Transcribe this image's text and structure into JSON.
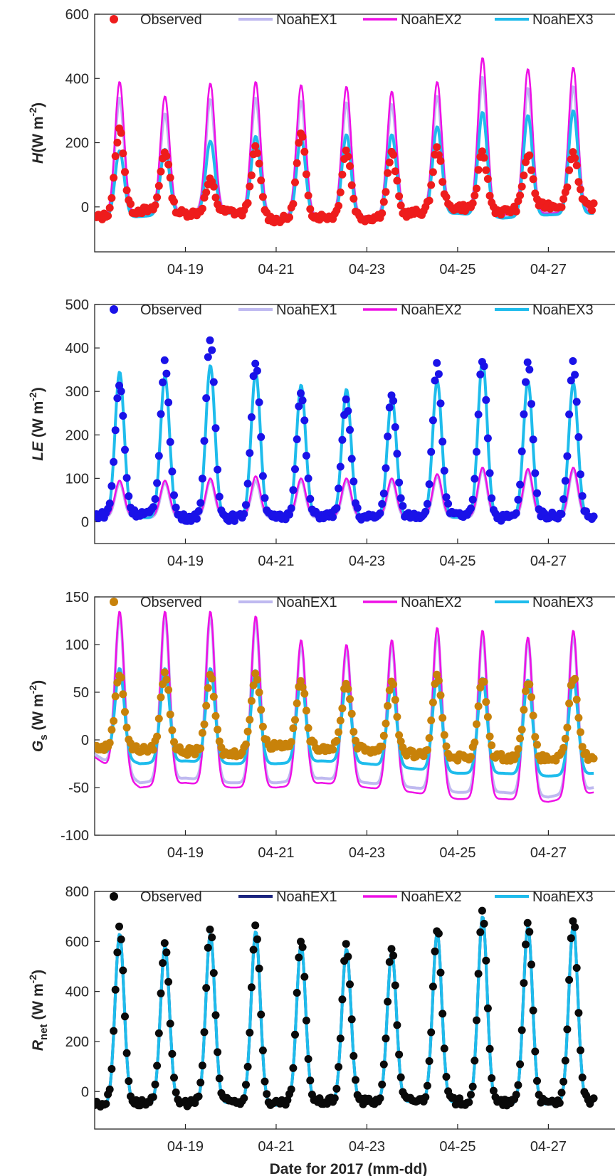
{
  "chart_data": [
    {
      "type": "line",
      "panel": "H",
      "ylabel": {
        "symbol": "H",
        "sub": "",
        "unit": "(W m",
        "exp": "-2",
        "close": ")"
      },
      "ylim": [
        -140,
        600
      ],
      "yticks": [
        0,
        200,
        400,
        600
      ],
      "xlim": [
        0,
        11.5
      ],
      "xticks": [
        2,
        4,
        6,
        8,
        10
      ],
      "xtick_labels": [
        "04-19",
        "04-21",
        "04-23",
        "04-25",
        "04-27"
      ],
      "legend": [
        "Observed",
        "NoahEX1",
        "NoahEX2",
        "NoahEX3"
      ],
      "legend_position": "top",
      "colors": {
        "observed": "#ee1c1c",
        "ex1": "#bfb9f0",
        "ex2": "#ee10e6",
        "ex3": "#1ebcec"
      },
      "series": [
        {
          "name": "Observed",
          "kind": "scatter",
          "daily_peaks": [
            240,
            175,
            80,
            180,
            225,
            175,
            165,
            180,
            165,
            160,
            170
          ],
          "night": [
            -35,
            -10,
            -20,
            -15,
            -40,
            -30,
            -35,
            -20,
            0,
            -15,
            5,
            0
          ]
        },
        {
          "name": "NoahEX1",
          "kind": "line",
          "daily_peaks": [
            340,
            290,
            335,
            340,
            330,
            325,
            320,
            345,
            405,
            370,
            375
          ],
          "night": [
            -30,
            -20,
            -15,
            -10,
            -30,
            -25,
            -30,
            -15,
            -10,
            -20,
            -15,
            -10
          ]
        },
        {
          "name": "NoahEX2",
          "kind": "line",
          "daily_peaks": [
            390,
            345,
            385,
            390,
            380,
            375,
            360,
            390,
            465,
            430,
            435
          ],
          "night": [
            -35,
            -25,
            -20,
            -15,
            -35,
            -30,
            -35,
            -20,
            -15,
            -25,
            -20,
            -15
          ]
        },
        {
          "name": "NoahEX3",
          "kind": "line",
          "daily_peaks": [
            175,
            180,
            205,
            220,
            215,
            225,
            225,
            250,
            295,
            285,
            300
          ],
          "night": [
            -40,
            -30,
            -20,
            -20,
            -40,
            -35,
            -40,
            -25,
            -20,
            -35,
            -25,
            -20
          ]
        }
      ]
    },
    {
      "type": "line",
      "panel": "LE",
      "ylabel": {
        "symbol": "LE",
        "sub": "",
        "unit": " (W m",
        "exp": "-2",
        "close": ")"
      },
      "ylim": [
        -50,
        500
      ],
      "yticks": [
        0,
        100,
        200,
        300,
        400,
        500
      ],
      "xlim": [
        0,
        11.5
      ],
      "xticks": [
        2,
        4,
        6,
        8,
        10
      ],
      "xtick_labels": [
        "04-19",
        "04-21",
        "04-23",
        "04-25",
        "04-27"
      ],
      "legend": [
        "Observed",
        "NoahEX1",
        "NoahEX2",
        "NoahEX3"
      ],
      "legend_position": "top",
      "colors": {
        "observed": "#1a12e8",
        "ex1": "#bfb9f0",
        "ex2": "#ee10e6",
        "ex3": "#1ebcec"
      },
      "series": [
        {
          "name": "Observed",
          "kind": "scatter",
          "daily_peaks": [
            315,
            365,
            420,
            370,
            295,
            275,
            290,
            360,
            375,
            365,
            365
          ],
          "night": [
            15,
            20,
            10,
            10,
            10,
            15,
            10,
            15,
            15,
            10,
            15,
            10
          ]
        },
        {
          "name": "NoahEX1",
          "kind": "line",
          "daily_peaks": [
            90,
            90,
            95,
            95,
            95,
            95,
            95,
            105,
            120,
            118,
            120
          ],
          "night": [
            10,
            10,
            10,
            10,
            10,
            10,
            10,
            10,
            10,
            10,
            10,
            10
          ]
        },
        {
          "name": "NoahEX2",
          "kind": "line",
          "daily_peaks": [
            95,
            95,
            100,
            105,
            100,
            100,
            100,
            110,
            125,
            122,
            125
          ],
          "night": [
            12,
            12,
            12,
            12,
            12,
            12,
            12,
            12,
            12,
            12,
            12,
            12
          ]
        },
        {
          "name": "NoahEX3",
          "kind": "line",
          "daily_peaks": [
            345,
            335,
            360,
            345,
            315,
            305,
            290,
            325,
            375,
            325,
            320
          ],
          "night": [
            10,
            10,
            5,
            10,
            10,
            15,
            10,
            10,
            10,
            10,
            10,
            10
          ]
        }
      ]
    },
    {
      "type": "line",
      "panel": "Gs",
      "ylabel": {
        "symbol": "G",
        "sub": "s",
        "unit": " (W m",
        "exp": "-2",
        "close": ")"
      },
      "ylim": [
        -100,
        150
      ],
      "yticks": [
        -100,
        -50,
        0,
        50,
        100,
        150
      ],
      "xlim": [
        0,
        11.5
      ],
      "xticks": [
        2,
        4,
        6,
        8,
        10
      ],
      "xtick_labels": [
        "04-19",
        "04-21",
        "04-23",
        "04-25",
        "04-27"
      ],
      "legend": [
        "Observed",
        "NoahEX1",
        "NoahEX2",
        "NoahEX3"
      ],
      "legend_position": "top",
      "colors": {
        "observed": "#c8820a",
        "ex1": "#bfb9f0",
        "ex2": "#ee10e6",
        "ex3": "#1ebcec"
      },
      "series": [
        {
          "name": "Observed",
          "kind": "scatter",
          "daily_peaks": [
            70,
            70,
            65,
            70,
            62,
            60,
            62,
            65,
            62,
            62,
            65
          ],
          "night": [
            -8,
            -10,
            -12,
            -15,
            -5,
            -8,
            -10,
            -15,
            -18,
            -18,
            -20,
            -18
          ]
        },
        {
          "name": "NoahEX1",
          "kind": "line",
          "daily_peaks": [
            130,
            130,
            130,
            125,
            100,
            95,
            100,
            112,
            110,
            105,
            110
          ],
          "night": [
            -15,
            -45,
            -40,
            -45,
            -45,
            -40,
            -45,
            -50,
            -55,
            -55,
            -60,
            -50
          ]
        },
        {
          "name": "NoahEX2",
          "kind": "line",
          "daily_peaks": [
            135,
            135,
            135,
            130,
            105,
            100,
            105,
            118,
            115,
            108,
            115
          ],
          "night": [
            -18,
            -50,
            -45,
            -50,
            -50,
            -45,
            -50,
            -55,
            -62,
            -62,
            -65,
            -55
          ]
        },
        {
          "name": "NoahEX3",
          "kind": "line",
          "daily_peaks": [
            75,
            75,
            75,
            73,
            63,
            60,
            60,
            67,
            65,
            63,
            65
          ],
          "night": [
            -10,
            -25,
            -22,
            -25,
            -25,
            -22,
            -25,
            -30,
            -35,
            -35,
            -38,
            -35
          ]
        }
      ]
    },
    {
      "type": "line",
      "panel": "Rnet",
      "ylabel": {
        "symbol": "R",
        "sub": "net",
        "unit": " (W m",
        "exp": "-2",
        "close": ")"
      },
      "ylim": [
        -150,
        800
      ],
      "yticks": [
        0,
        200,
        400,
        600,
        800
      ],
      "xlim": [
        0,
        11.5
      ],
      "xticks": [
        2,
        4,
        6,
        8,
        10
      ],
      "xtick_labels": [
        "04-19",
        "04-21",
        "04-23",
        "04-25",
        "04-27"
      ],
      "xlabel": "Date for 2017 (mm-dd)",
      "legend": [
        "Observed",
        "NoahEX1",
        "NoahEX2",
        "NoahEX3"
      ],
      "legend_position": "top",
      "colors": {
        "observed": "#0a0a0a",
        "ex1": "#1a237e",
        "ex2": "#ee10e6",
        "ex3": "#1ebcec"
      },
      "series": [
        {
          "name": "Observed",
          "kind": "scatter",
          "daily_peaks": [
            650,
            600,
            650,
            660,
            605,
            585,
            580,
            655,
            720,
            680,
            685
          ],
          "night": [
            -50,
            -45,
            -45,
            -40,
            -50,
            -40,
            -40,
            -35,
            -40,
            -45,
            -45,
            -40
          ]
        },
        {
          "name": "NoahEX1",
          "kind": "line",
          "daily_peaks": [
            630,
            580,
            630,
            640,
            590,
            570,
            560,
            635,
            700,
            660,
            665
          ],
          "night": [
            -55,
            -50,
            -50,
            -45,
            -55,
            -45,
            -45,
            -40,
            -45,
            -50,
            -50,
            -45
          ]
        },
        {
          "name": "NoahEX2",
          "kind": "line",
          "daily_peaks": [
            630,
            580,
            630,
            640,
            590,
            570,
            560,
            635,
            700,
            660,
            665
          ],
          "night": [
            -55,
            -50,
            -50,
            -45,
            -55,
            -45,
            -45,
            -40,
            -45,
            -50,
            -50,
            -45
          ]
        },
        {
          "name": "NoahEX3",
          "kind": "line",
          "daily_peaks": [
            630,
            580,
            630,
            640,
            590,
            570,
            560,
            635,
            700,
            660,
            665
          ],
          "night": [
            -55,
            -50,
            -50,
            -45,
            -55,
            -45,
            -45,
            -40,
            -45,
            -50,
            -50,
            -45
          ]
        }
      ]
    }
  ]
}
